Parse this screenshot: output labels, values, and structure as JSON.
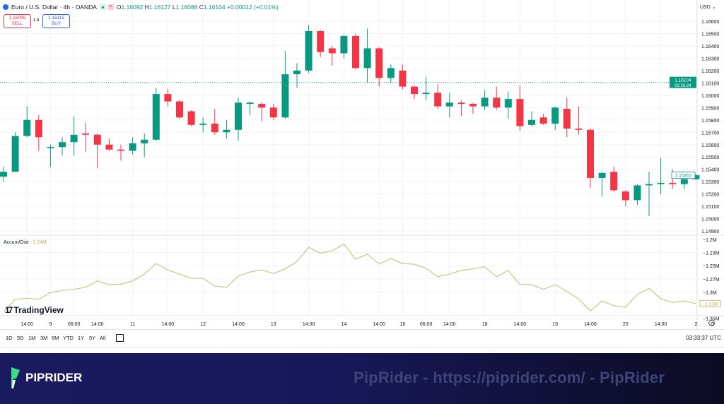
{
  "header": {
    "symbol": "Euro / U.S. Dollar · 4h · OANDA",
    "open_label": "O",
    "open": "1.16092",
    "high_label": "H",
    "high": "1.16127",
    "low_label": "L",
    "low": "1.16088",
    "close_label": "C",
    "close": "1.16104",
    "change": "+0.00012 (+0.01%)"
  },
  "trade": {
    "sell_price": "1.16099",
    "sell_label": "SELL",
    "spread": "1.6",
    "buy_price": "1.16115",
    "buy_label": "BUY"
  },
  "currency": "USD",
  "price_label": {
    "price": "1.16104",
    "countdown": "02:26:24"
  },
  "last_bar_label": "1.15352",
  "indicator": {
    "name": "Accum/Dist",
    "value": "−1.24M",
    "last_label": "−1.32M"
  },
  "watermark_logo": "TradingView",
  "ranges": [
    "1D",
    "5D",
    "1M",
    "3M",
    "6M",
    "YTD",
    "1Y",
    "5Y",
    "All"
  ],
  "clock": "03:33:37 UTC",
  "banner": {
    "brand": "PIPRIDER",
    "watermark": "PipRider - https://piprider.com/ - PipRider"
  },
  "colors": {
    "up": "#089981",
    "down": "#f23645",
    "ad_line": "#c8c68a",
    "grid": "#f0f3fa",
    "banner": "#1a1a5e"
  },
  "chart_data": [
    {
      "type": "candlestick",
      "title": "Euro / U.S. Dollar · 4h · OANDA",
      "ylim": [
        1.1485,
        1.1668
      ],
      "grid": true,
      "y_ticks": [
        1.166,
        1.165,
        1.164,
        1.163,
        1.162,
        1.161,
        1.16,
        1.159,
        1.158,
        1.157,
        1.156,
        1.155,
        1.154,
        1.153,
        1.152,
        1.151,
        1.15,
        1.149
      ],
      "y_tick_labels": [
        "1.16600",
        "1.16500",
        "1.16400",
        "1.16300",
        "1.16200",
        "1.16100",
        "1.16000",
        "1.15900",
        "1.15800",
        "1.15700",
        "1.15600",
        "1.15500",
        "1.15400",
        "1.15300",
        "1.15200",
        "1.15100",
        "1.15000",
        "1.14900"
      ],
      "current_price": 1.16104,
      "last_close": 1.15352,
      "ohlc": [
        [
          1.1534,
          1.1542,
          1.153,
          1.1538
        ],
        [
          1.1538,
          1.157,
          1.1538,
          1.1567
        ],
        [
          1.1567,
          1.1591,
          1.1566,
          1.158
        ],
        [
          1.158,
          1.1584,
          1.1555,
          1.1566
        ],
        [
          1.1557,
          1.156,
          1.1542,
          1.1558
        ],
        [
          1.1558,
          1.1566,
          1.1551,
          1.1562
        ],
        [
          1.1562,
          1.1583,
          1.1551,
          1.1568
        ],
        [
          1.1569,
          1.1578,
          1.1554,
          1.1568
        ],
        [
          1.1568,
          1.1569,
          1.1541,
          1.156
        ],
        [
          1.156,
          1.1565,
          1.1555,
          1.1556
        ],
        [
          1.1556,
          1.156,
          1.1547,
          1.1555
        ],
        [
          1.1555,
          1.1566,
          1.1552,
          1.1561
        ],
        [
          1.1561,
          1.1569,
          1.155,
          1.1564
        ],
        [
          1.1564,
          1.1606,
          1.1563,
          1.1601
        ],
        [
          1.1601,
          1.1605,
          1.1591,
          1.1595
        ],
        [
          1.1595,
          1.1596,
          1.1581,
          1.1582
        ],
        [
          1.1587,
          1.1588,
          1.1575,
          1.1576
        ],
        [
          1.1576,
          1.1582,
          1.157,
          1.1577
        ],
        [
          1.1577,
          1.1589,
          1.1568,
          1.157
        ],
        [
          1.157,
          1.158,
          1.1565,
          1.1572
        ],
        [
          1.1572,
          1.1598,
          1.1563,
          1.1594
        ],
        [
          1.1593,
          1.1595,
          1.1584,
          1.1594
        ],
        [
          1.1593,
          1.1594,
          1.1579,
          1.159
        ],
        [
          1.159,
          1.1593,
          1.158,
          1.1582
        ],
        [
          1.1582,
          1.1636,
          1.1581,
          1.1617
        ],
        [
          1.1617,
          1.1626,
          1.1606,
          1.162
        ],
        [
          1.162,
          1.1657,
          1.1618,
          1.1652
        ],
        [
          1.1652,
          1.1653,
          1.1631,
          1.1635
        ],
        [
          1.1638,
          1.164,
          1.1624,
          1.1634
        ],
        [
          1.1634,
          1.1649,
          1.163,
          1.1648
        ],
        [
          1.1648,
          1.165,
          1.1621,
          1.1622
        ],
        [
          1.1622,
          1.1654,
          1.161,
          1.1638
        ],
        [
          1.1638,
          1.1639,
          1.1607,
          1.1614
        ],
        [
          1.1614,
          1.1625,
          1.161,
          1.1622
        ],
        [
          1.162,
          1.1625,
          1.1605,
          1.1607
        ],
        [
          1.1607,
          1.1608,
          1.1597,
          1.1601
        ],
        [
          1.1601,
          1.1615,
          1.1596,
          1.1602
        ],
        [
          1.1602,
          1.1609,
          1.1589,
          1.1591
        ],
        [
          1.1591,
          1.1602,
          1.1582,
          1.1594
        ],
        [
          1.1594,
          1.1596,
          1.1583,
          1.1593
        ],
        [
          1.1593,
          1.1594,
          1.1585,
          1.1591
        ],
        [
          1.1591,
          1.1604,
          1.1588,
          1.1598
        ],
        [
          1.1598,
          1.1607,
          1.1588,
          1.159
        ],
        [
          1.159,
          1.1603,
          1.1581,
          1.1597
        ],
        [
          1.1597,
          1.1608,
          1.1571,
          1.1575
        ],
        [
          1.1576,
          1.1587,
          1.1575,
          1.158
        ],
        [
          1.1582,
          1.1585,
          1.1576,
          1.1577
        ],
        [
          1.1577,
          1.1591,
          1.1572,
          1.159
        ],
        [
          1.1589,
          1.1598,
          1.1566,
          1.1573
        ],
        [
          1.1573,
          1.1591,
          1.1568,
          1.1572
        ],
        [
          1.1572,
          1.1573,
          1.1525,
          1.1533
        ],
        [
          1.1533,
          1.1538,
          1.1518,
          1.1537
        ],
        [
          1.1538,
          1.1542,
          1.1522,
          1.1523
        ],
        [
          1.1522,
          1.1523,
          1.151,
          1.1515
        ],
        [
          1.1515,
          1.1528,
          1.1511,
          1.1527
        ],
        [
          1.1527,
          1.1538,
          1.1502,
          1.1528
        ],
        [
          1.1528,
          1.1549,
          1.152,
          1.1529
        ],
        [
          1.1529,
          1.154,
          1.1524,
          1.1528
        ],
        [
          1.1528,
          1.1538,
          1.1524,
          1.1532
        ],
        [
          1.1532,
          1.1536,
          1.1531,
          1.15352
        ]
      ],
      "x_tick_labels": [
        {
          "bar": 2,
          "label": "14:00"
        },
        {
          "bar": 4,
          "label": "9"
        },
        {
          "bar": 6,
          "label": "06:00"
        },
        {
          "bar": 8,
          "label": "14:00"
        },
        {
          "bar": 11,
          "label": "11"
        },
        {
          "bar": 14,
          "label": "14:00"
        },
        {
          "bar": 17,
          "label": "12"
        },
        {
          "bar": 20,
          "label": "14:00"
        },
        {
          "bar": 23,
          "label": "13"
        },
        {
          "bar": 26,
          "label": "14:00"
        },
        {
          "bar": 29,
          "label": "14"
        },
        {
          "bar": 32,
          "label": "14:00"
        },
        {
          "bar": 34,
          "label": "16"
        },
        {
          "bar": 36,
          "label": "06:00"
        },
        {
          "bar": 38,
          "label": "14:00"
        },
        {
          "bar": 41,
          "label": "18"
        },
        {
          "bar": 44,
          "label": "14:00"
        },
        {
          "bar": 47,
          "label": "19"
        },
        {
          "bar": 50,
          "label": "14:00"
        },
        {
          "bar": 53,
          "label": "20"
        },
        {
          "bar": 56,
          "label": "14:00"
        },
        {
          "bar": 59,
          "label": "2"
        }
      ]
    },
    {
      "type": "line",
      "series": [
        {
          "name": "Accum/Dist",
          "values": [
            -1.338,
            -1.314,
            -1.312,
            -1.314,
            -1.301,
            -1.297,
            -1.295,
            -1.291,
            -1.279,
            -1.286,
            -1.285,
            -1.279,
            -1.266,
            -1.246,
            -1.258,
            -1.266,
            -1.274,
            -1.274,
            -1.289,
            -1.291,
            -1.27,
            -1.262,
            -1.258,
            -1.265,
            -1.256,
            -1.242,
            -1.215,
            -1.226,
            -1.222,
            -1.209,
            -1.238,
            -1.228,
            -1.247,
            -1.236,
            -1.246,
            -1.247,
            -1.255,
            -1.271,
            -1.266,
            -1.259,
            -1.256,
            -1.252,
            -1.271,
            -1.259,
            -1.286,
            -1.286,
            -1.295,
            -1.286,
            -1.299,
            -1.313,
            -1.336,
            -1.317,
            -1.326,
            -1.329,
            -1.305,
            -1.293,
            -1.313,
            -1.32,
            -1.317,
            -1.322
          ]
        }
      ],
      "unit": "M",
      "y_ticks": [
        -1.2,
        -1.225,
        -1.25,
        -1.275,
        -1.3,
        -1.35
      ],
      "y_tick_labels": [
        "−1.2M",
        "−1.23M",
        "−1.25M",
        "−1.27M",
        "−1.3M",
        "−1.35M"
      ]
    }
  ]
}
